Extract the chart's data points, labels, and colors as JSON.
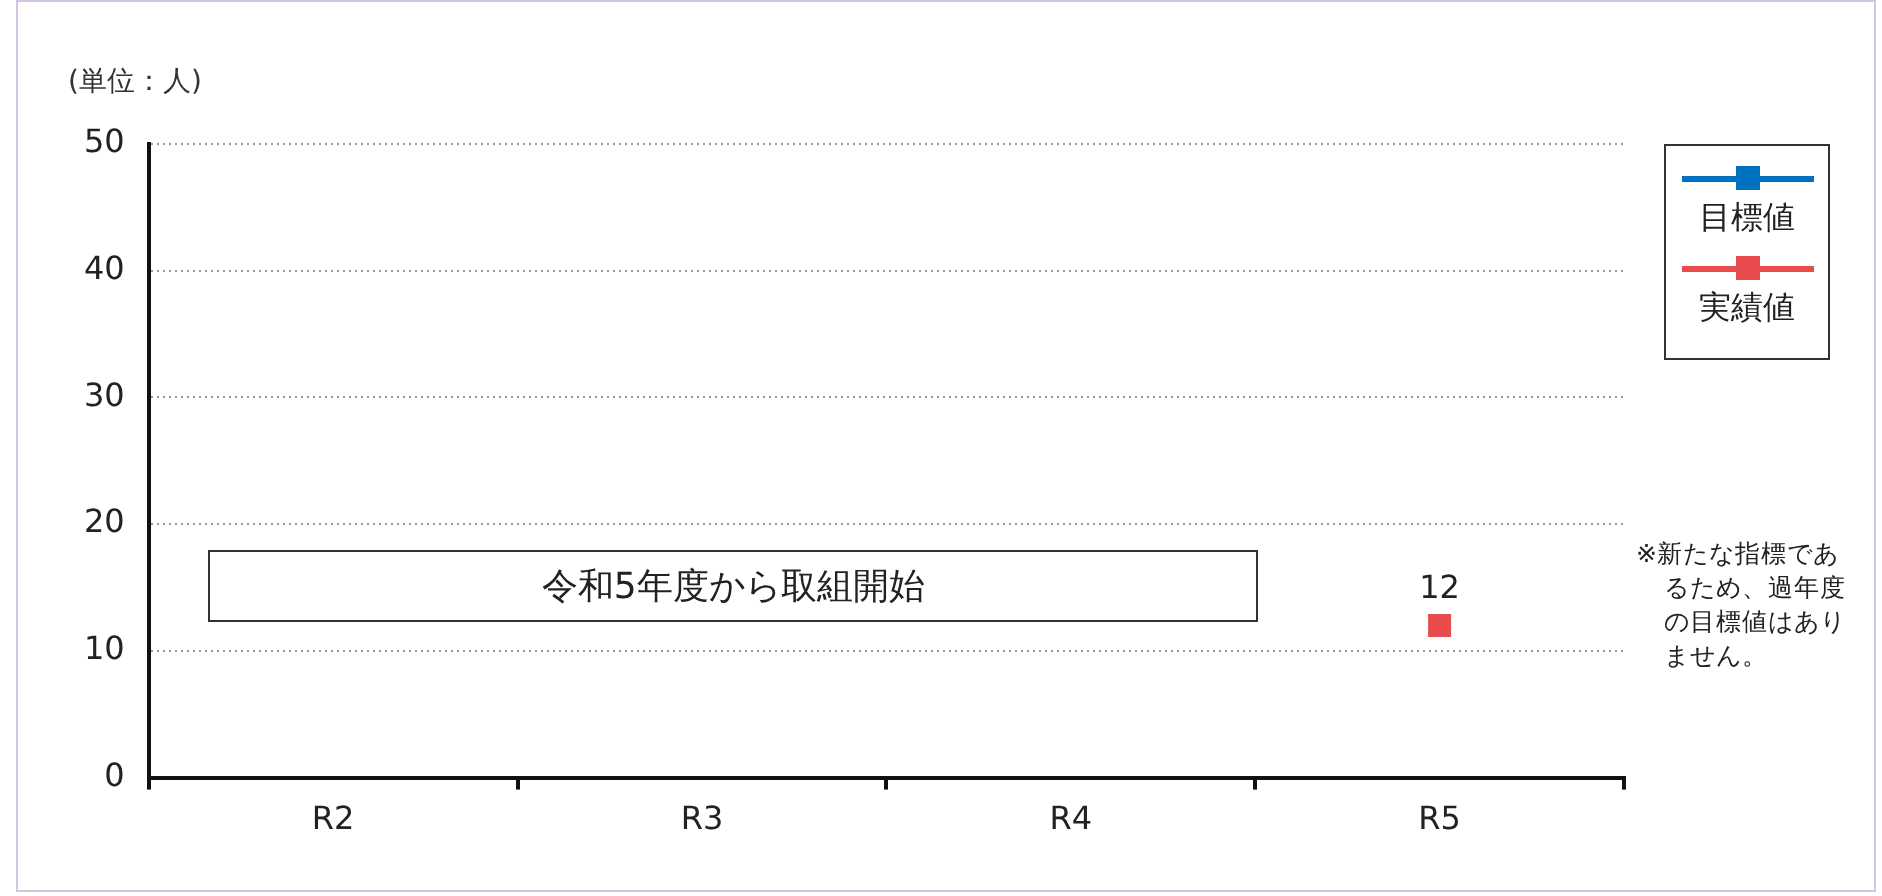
{
  "chart_data": {
    "type": "line",
    "ylabel": "(単位：人)",
    "categories": [
      "R2",
      "R3",
      "R4",
      "R5"
    ],
    "series": [
      {
        "name": "目標値",
        "color": "#0070c0",
        "values": [
          null,
          null,
          null,
          null
        ]
      },
      {
        "name": "実績値",
        "color": "#e84c4c",
        "values": [
          null,
          null,
          null,
          12
        ]
      }
    ],
    "ylim": [
      0,
      50
    ],
    "yticks": [
      0,
      10,
      20,
      30,
      40,
      50
    ],
    "grid": "y",
    "legend": "top right",
    "marker": "square",
    "line_style": "solid",
    "data_labels": true,
    "annotations": [
      "令和5年度から取組開始",
      "※新たな指標であるため、過年度の目標値はありません。"
    ]
  }
}
